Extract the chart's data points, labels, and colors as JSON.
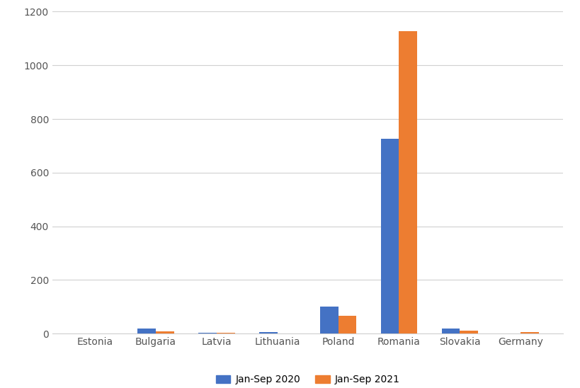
{
  "categories": [
    "Estonia",
    "Bulgaria",
    "Latvia",
    "Lithuania",
    "Poland",
    "Romania",
    "Slovakia",
    "Germany"
  ],
  "values_2020": [
    0,
    20,
    3,
    5,
    100,
    727,
    18,
    0
  ],
  "values_2021": [
    0,
    8,
    3,
    0,
    67,
    1127,
    12,
    5
  ],
  "color_2020": "#4472c4",
  "color_2021": "#ed7d31",
  "ylim": [
    0,
    1200
  ],
  "yticks": [
    0,
    200,
    400,
    600,
    800,
    1000,
    1200
  ],
  "legend_labels": [
    "Jan-Sep 2020",
    "Jan-Sep 2021"
  ],
  "background_color": "#ffffff",
  "grid_color": "#d0d0d0",
  "bar_width": 0.3,
  "fig_width": 8.2,
  "fig_height": 5.48,
  "dpi": 100
}
